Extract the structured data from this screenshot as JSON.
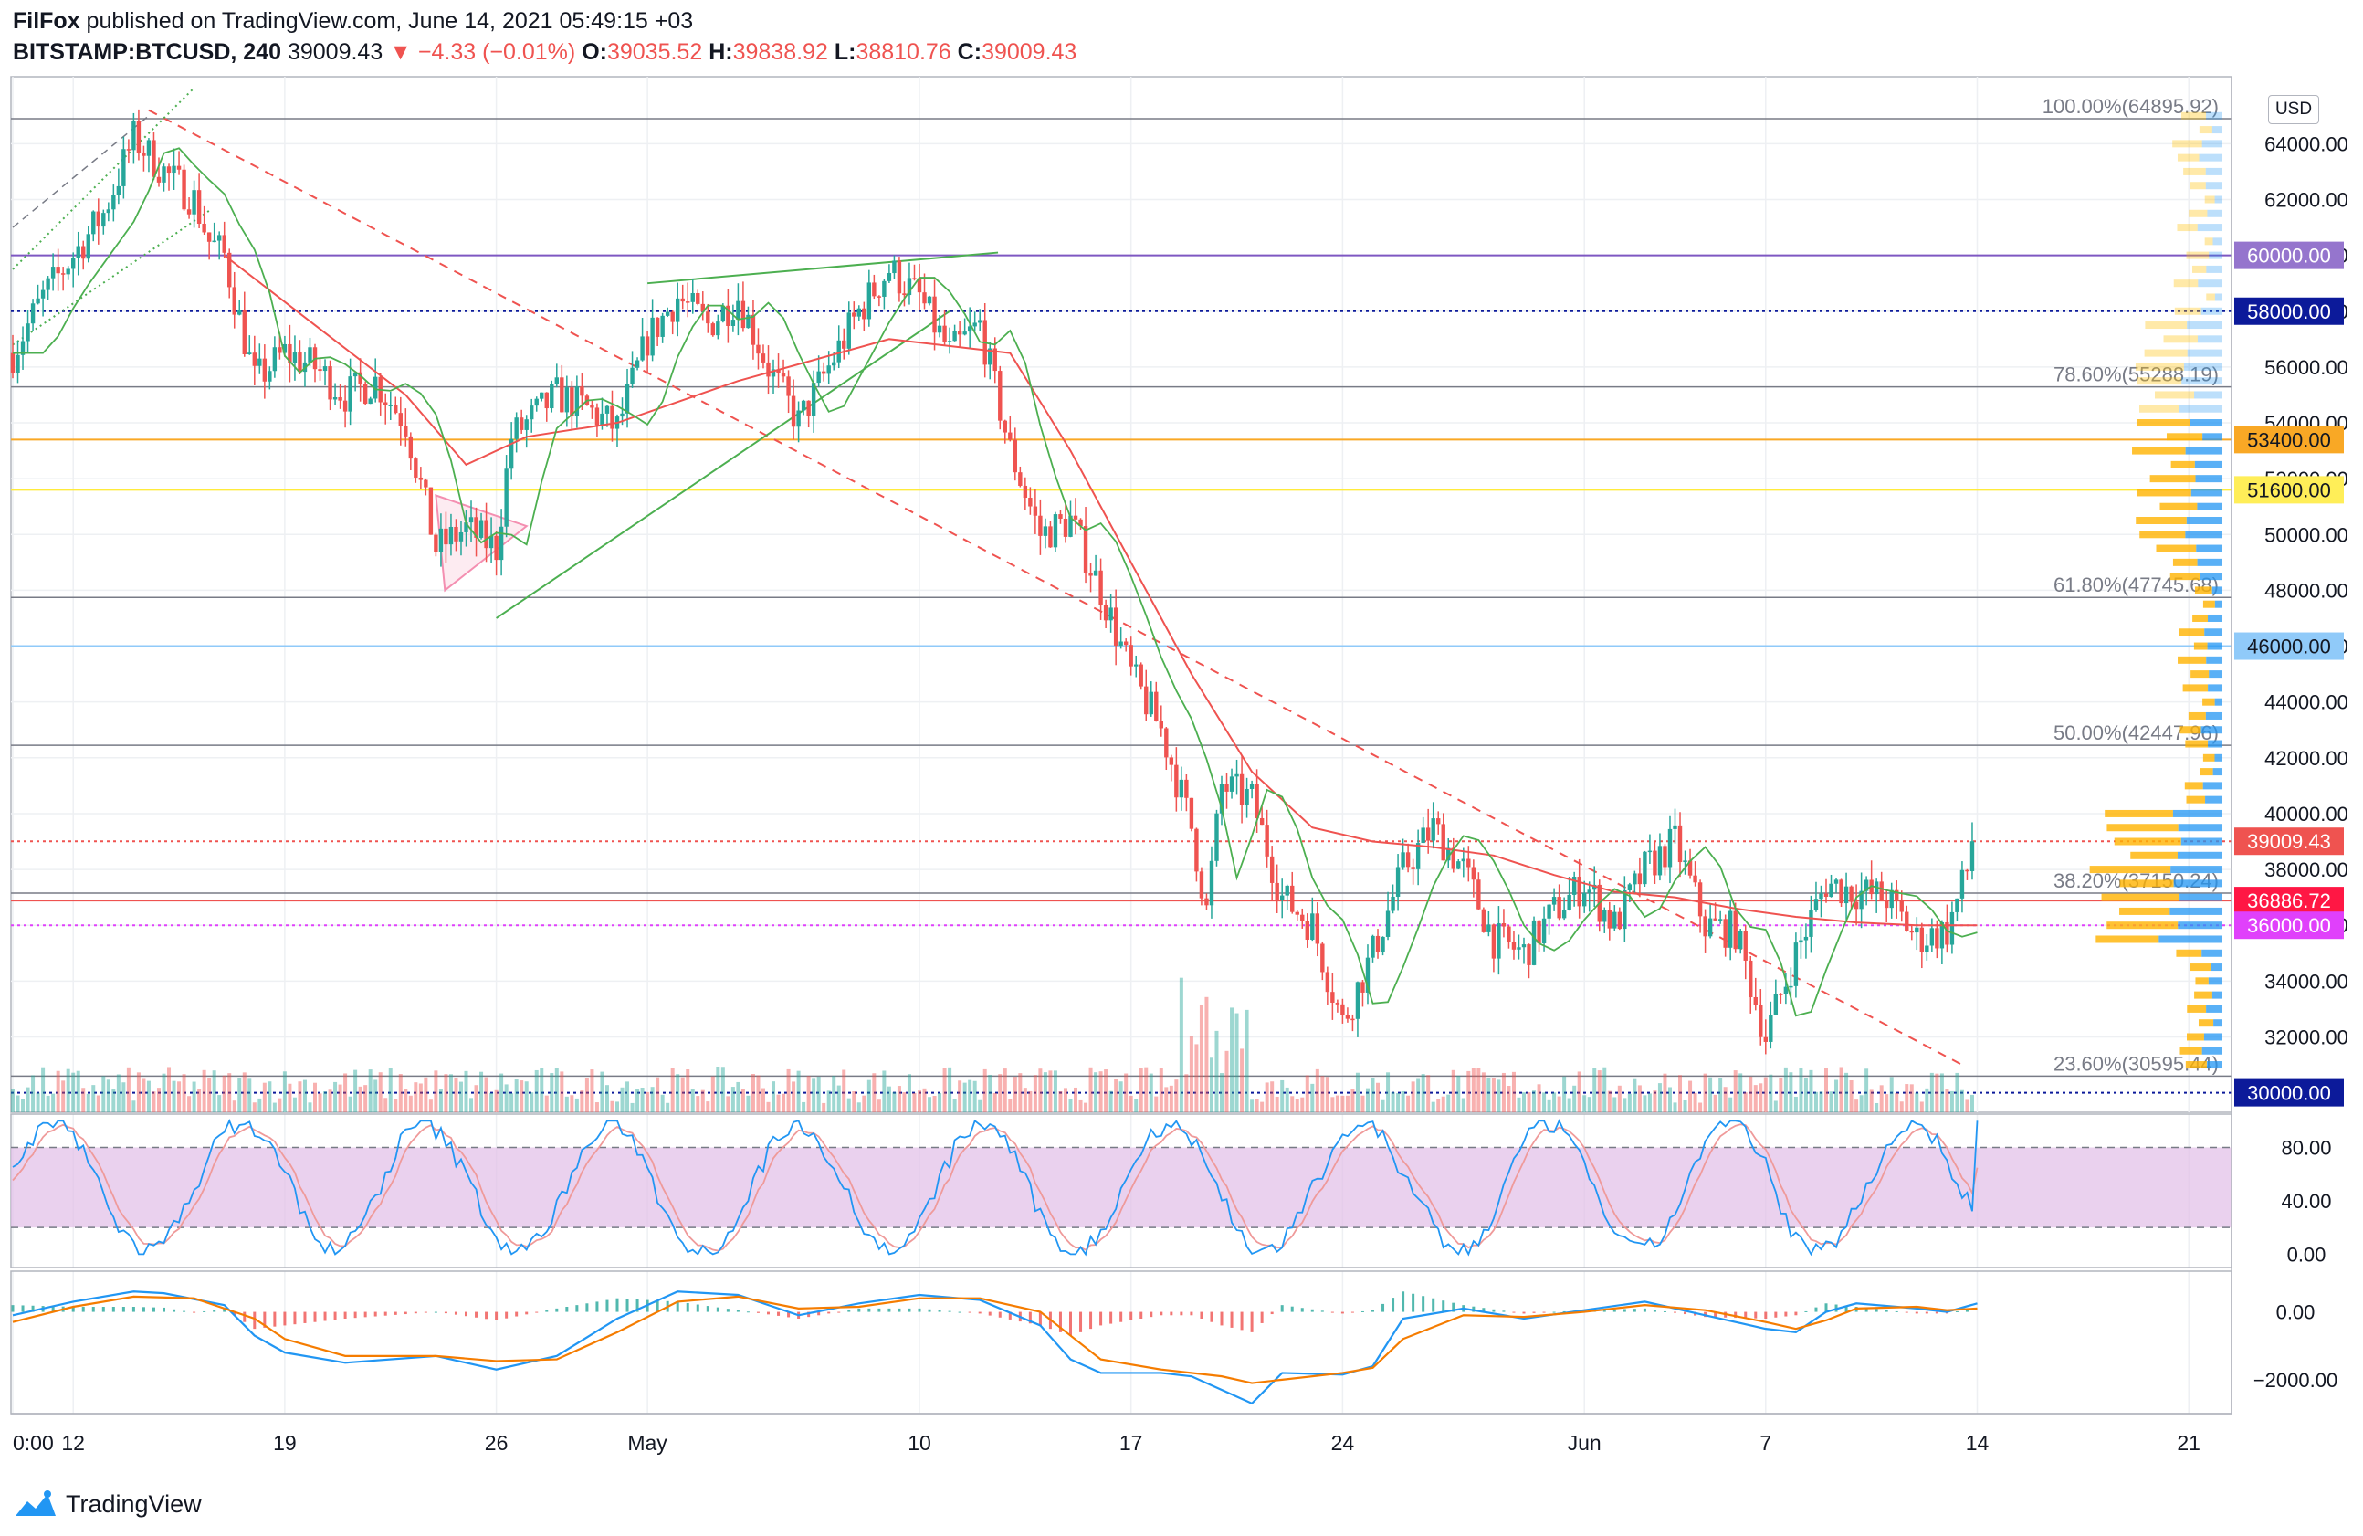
{
  "header": {
    "publisher": "FilFox",
    "published_text": " published on TradingView.com, June 14, 2021 05:49:15 +03",
    "symbol": "BITSTAMP:BTCUSD, 240",
    "last": "39009.43",
    "change": "▼ −4.33 (−0.01%)",
    "o_label": "O:",
    "o_value": "39035.52",
    "h_label": "H:",
    "h_value": "39838.92",
    "l_label": "L:",
    "l_value": "38810.76",
    "c_label": "C:",
    "c_value": "39009.43"
  },
  "footer": {
    "brand": "TradingView"
  },
  "currency": "USD",
  "colors": {
    "up": "#26a69a",
    "down": "#ef5350",
    "ma": "#ef5350",
    "ma_green": "#4caf50",
    "stoch_band": "#e1bee7",
    "stoch_k": "#2196f3",
    "stoch_d": "#ef9a9a",
    "macd": "#2196f3",
    "signal": "#f57c00",
    "grid": "#eef0f3"
  },
  "chart_data": {
    "type": "candlestick",
    "symbol": "BITSTAMP:BTCUSD",
    "interval": "240",
    "y_range": [
      29300,
      66400
    ],
    "y_ticks": [
      32000,
      34000,
      36000,
      38000,
      40000,
      42000,
      44000,
      46000,
      48000,
      50000,
      52000,
      54000,
      56000,
      58000,
      60000,
      62000,
      64000
    ],
    "x_labels": [
      {
        "label": "0:00",
        "day": 0
      },
      {
        "label": "12",
        "day": 2
      },
      {
        "label": "19",
        "day": 9
      },
      {
        "label": "26",
        "day": 16
      },
      {
        "label": "May",
        "day": 21
      },
      {
        "label": "10",
        "day": 30
      },
      {
        "label": "17",
        "day": 37
      },
      {
        "label": "24",
        "day": 44
      },
      {
        "label": "Jun",
        "day": 52
      },
      {
        "label": "7",
        "day": 58
      },
      {
        "label": "14",
        "day": 65
      },
      {
        "label": "21",
        "day": 72
      }
    ],
    "close_path": [
      [
        0,
        56500
      ],
      [
        1,
        58500
      ],
      [
        2,
        60000
      ],
      [
        3,
        61500
      ],
      [
        4,
        64200
      ],
      [
        5,
        63000
      ],
      [
        6,
        62000
      ],
      [
        6.5,
        60500
      ],
      [
        7,
        60000
      ],
      [
        8,
        55500
      ],
      [
        9,
        56500
      ],
      [
        10,
        56000
      ],
      [
        11,
        55000
      ],
      [
        12,
        55500
      ],
      [
        13,
        54000
      ],
      [
        14,
        49500
      ],
      [
        15,
        50200
      ],
      [
        16,
        49500
      ],
      [
        16.5,
        53500
      ],
      [
        17,
        54000
      ],
      [
        18,
        55000
      ],
      [
        19,
        54500
      ],
      [
        20,
        53800
      ],
      [
        21,
        57000
      ],
      [
        22,
        58500
      ],
      [
        23,
        57500
      ],
      [
        24,
        58500
      ],
      [
        25,
        56000
      ],
      [
        26,
        54000
      ],
      [
        27,
        56000
      ],
      [
        28,
        58000
      ],
      [
        29,
        59500
      ],
      [
        30,
        58500
      ],
      [
        31,
        56500
      ],
      [
        32,
        57500
      ],
      [
        33,
        53000
      ],
      [
        34,
        50000
      ],
      [
        35,
        50500
      ],
      [
        36,
        48000
      ],
      [
        37,
        45000
      ],
      [
        38,
        43000
      ],
      [
        39,
        39500
      ],
      [
        39.5,
        36500
      ],
      [
        40,
        41000
      ],
      [
        41,
        40500
      ],
      [
        42,
        37000
      ],
      [
        43,
        36000
      ],
      [
        44,
        32500
      ],
      [
        45,
        35000
      ],
      [
        46,
        38000
      ],
      [
        47,
        39500
      ],
      [
        48,
        38000
      ],
      [
        49,
        35500
      ],
      [
        50,
        35000
      ],
      [
        51,
        36500
      ],
      [
        52,
        37500
      ],
      [
        53,
        36000
      ],
      [
        54,
        38000
      ],
      [
        55,
        39000
      ],
      [
        56,
        36000
      ],
      [
        57,
        35800
      ],
      [
        58,
        32000
      ],
      [
        59,
        35000
      ],
      [
        60,
        37500
      ],
      [
        61,
        37200
      ],
      [
        62,
        37000
      ],
      [
        63,
        35500
      ],
      [
        64,
        35800
      ],
      [
        65,
        39009
      ]
    ],
    "ma_path": [
      [
        7,
        60000
      ],
      [
        10,
        57500
      ],
      [
        13,
        55000
      ],
      [
        15,
        52500
      ],
      [
        17,
        53500
      ],
      [
        20,
        54000
      ],
      [
        24,
        55500
      ],
      [
        29,
        57000
      ],
      [
        33,
        56500
      ],
      [
        35,
        53000
      ],
      [
        37,
        49000
      ],
      [
        39,
        45000
      ],
      [
        41,
        41500
      ],
      [
        43,
        39500
      ],
      [
        45,
        39000
      ],
      [
        47,
        38800
      ],
      [
        49,
        38500
      ],
      [
        51,
        37800
      ],
      [
        53,
        37200
      ],
      [
        55,
        37000
      ],
      [
        57,
        36600
      ],
      [
        59,
        36300
      ],
      [
        61,
        36100
      ],
      [
        63,
        36000
      ],
      [
        65,
        36000
      ]
    ],
    "price_labels": [
      {
        "value": 60000,
        "text": "60000.00",
        "bg": "#9575cd",
        "fg": "#ffffff"
      },
      {
        "value": 58000,
        "text": "58000.00",
        "bg": "#0c1a9a",
        "fg": "#ffffff"
      },
      {
        "value": 53400,
        "text": "53400.00",
        "bg": "#f9a825",
        "fg": "#131722"
      },
      {
        "value": 51600,
        "text": "51600.00",
        "bg": "#ffee58",
        "fg": "#131722"
      },
      {
        "value": 46000,
        "text": "46000.00",
        "bg": "#90caf9",
        "fg": "#131722"
      },
      {
        "value": 39009.43,
        "text": "39009.43",
        "bg": "#ef5350",
        "fg": "#ffffff"
      },
      {
        "value": 36886.72,
        "text": "36886.72",
        "bg": "#ff1744",
        "fg": "#ffffff"
      },
      {
        "value": 36000,
        "text": "36000.00",
        "bg": "#e040fb",
        "fg": "#ffffff"
      },
      {
        "value": 30000,
        "text": "30000.00",
        "bg": "#0c1a9a",
        "fg": "#ffffff"
      }
    ],
    "fib_levels": [
      {
        "value": 64895.92,
        "text": "100.00%(64895.92)"
      },
      {
        "value": 55288.19,
        "text": "78.60%(55288.19)"
      },
      {
        "value": 47745.68,
        "text": "61.80%(47745.68)"
      },
      {
        "value": 42447.96,
        "text": "50.00%(42447.96)"
      },
      {
        "value": 37150.24,
        "text": "38.20%(37150.24)"
      },
      {
        "value": 30595.44,
        "text": "23.60%(30595.44)"
      }
    ],
    "hlines": [
      {
        "value": 60000,
        "color": "#7e57c2",
        "dash": false
      },
      {
        "value": 58000,
        "color": "#0c1a9a",
        "dash": true
      },
      {
        "value": 53400,
        "color": "#f9a825",
        "dash": false
      },
      {
        "value": 51600,
        "color": "#ffeb3b",
        "dash": false
      },
      {
        "value": 46000,
        "color": "#90caf9",
        "dash": false
      },
      {
        "value": 39009.43,
        "color": "#ef5350",
        "dash": true
      },
      {
        "value": 36886.72,
        "color": "#ef5350",
        "dash": false
      },
      {
        "value": 36000,
        "color": "#e040fb",
        "dash": true
      },
      {
        "value": 30000,
        "color": "#0c1a9a",
        "dash": true
      }
    ],
    "stoch": {
      "ticks": [
        {
          "value": 80,
          "text": "80.00"
        },
        {
          "value": 40,
          "text": "40.00"
        },
        {
          "value": 0,
          "text": "0.00"
        }
      ],
      "band": [
        20,
        80
      ],
      "range": [
        -10,
        105
      ]
    },
    "macd": {
      "ticks": [
        {
          "value": 0,
          "text": "0.00"
        },
        {
          "value": -2000,
          "text": "−2000.00"
        }
      ],
      "range": [
        -3000,
        1200
      ],
      "line_path": [
        [
          0,
          -100
        ],
        [
          2,
          300
        ],
        [
          4,
          600
        ],
        [
          5,
          550
        ],
        [
          7,
          200
        ],
        [
          8,
          -700
        ],
        [
          9,
          -1200
        ],
        [
          11,
          -1500
        ],
        [
          14,
          -1300
        ],
        [
          16,
          -1700
        ],
        [
          18,
          -1300
        ],
        [
          20,
          -200
        ],
        [
          22,
          600
        ],
        [
          24,
          500
        ],
        [
          26,
          -100
        ],
        [
          28,
          250
        ],
        [
          30,
          500
        ],
        [
          32,
          350
        ],
        [
          34,
          -400
        ],
        [
          35,
          -1400
        ],
        [
          36,
          -1800
        ],
        [
          38,
          -1800
        ],
        [
          39,
          -1900
        ],
        [
          40,
          -2300
        ],
        [
          41,
          -2700
        ],
        [
          42,
          -1800
        ],
        [
          44,
          -1850
        ],
        [
          45,
          -1600
        ],
        [
          46,
          -200
        ],
        [
          48,
          100
        ],
        [
          50,
          -200
        ],
        [
          52,
          50
        ],
        [
          54,
          300
        ],
        [
          56,
          -100
        ],
        [
          58,
          -500
        ],
        [
          59,
          -600
        ],
        [
          60,
          0
        ],
        [
          61,
          250
        ],
        [
          63,
          100
        ],
        [
          64,
          0
        ],
        [
          65,
          250
        ]
      ],
      "signal_path": [
        [
          0,
          -300
        ],
        [
          2,
          150
        ],
        [
          4,
          450
        ],
        [
          6,
          400
        ],
        [
          8,
          -200
        ],
        [
          9,
          -800
        ],
        [
          11,
          -1300
        ],
        [
          14,
          -1300
        ],
        [
          16,
          -1450
        ],
        [
          18,
          -1400
        ],
        [
          20,
          -600
        ],
        [
          22,
          300
        ],
        [
          24,
          450
        ],
        [
          26,
          100
        ],
        [
          28,
          150
        ],
        [
          30,
          400
        ],
        [
          32,
          400
        ],
        [
          34,
          0
        ],
        [
          35,
          -700
        ],
        [
          36,
          -1400
        ],
        [
          38,
          -1700
        ],
        [
          40,
          -1900
        ],
        [
          41,
          -2100
        ],
        [
          42,
          -2000
        ],
        [
          44,
          -1800
        ],
        [
          45,
          -1650
        ],
        [
          46,
          -800
        ],
        [
          48,
          -100
        ],
        [
          50,
          -150
        ],
        [
          52,
          0
        ],
        [
          54,
          200
        ],
        [
          56,
          50
        ],
        [
          58,
          -300
        ],
        [
          59,
          -500
        ],
        [
          60,
          -250
        ],
        [
          61,
          100
        ],
        [
          63,
          150
        ],
        [
          64,
          50
        ],
        [
          65,
          100
        ]
      ]
    }
  }
}
